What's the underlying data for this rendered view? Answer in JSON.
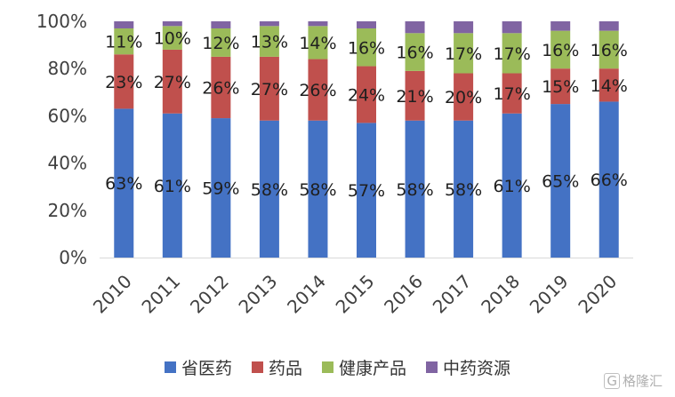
{
  "chart_data": {
    "type": "bar",
    "stacked": true,
    "percent": true,
    "categories": [
      "2010",
      "2011",
      "2012",
      "2013",
      "2014",
      "2015",
      "2016",
      "2017",
      "2018",
      "2019",
      "2020"
    ],
    "series": [
      {
        "name": "省医药",
        "color": "#4472c4",
        "values": [
          63,
          61,
          59,
          58,
          58,
          57,
          58,
          58,
          61,
          65,
          66
        ],
        "labels": [
          "63%",
          "61%",
          "59%",
          "58%",
          "58%",
          "57%",
          "58%",
          "58%",
          "61%",
          "65%",
          "66%"
        ]
      },
      {
        "name": "药品",
        "color": "#c0504d",
        "values": [
          23,
          27,
          26,
          27,
          26,
          24,
          21,
          20,
          17,
          15,
          14
        ],
        "labels": [
          "23%",
          "27%",
          "26%",
          "27%",
          "26%",
          "24%",
          "21%",
          "20%",
          "17%",
          "15%",
          "14%"
        ]
      },
      {
        "name": "健康产品",
        "color": "#9bbb59",
        "values": [
          11,
          10,
          12,
          13,
          14,
          16,
          16,
          17,
          17,
          16,
          16
        ],
        "labels": [
          "11%",
          "10%",
          "12%",
          "13%",
          "14%",
          "16%",
          "16%",
          "17%",
          "17%",
          "16%",
          "16%"
        ]
      },
      {
        "name": "中药资源",
        "color": "#8064a2",
        "values": [
          3,
          2,
          3,
          2,
          2,
          3,
          5,
          5,
          5,
          4,
          4
        ],
        "labels": []
      }
    ],
    "ylim": [
      0,
      100
    ],
    "yticks": [
      "0%",
      "20%",
      "40%",
      "60%",
      "80%",
      "100%"
    ],
    "grid": false,
    "legend": "bottom"
  },
  "watermark": {
    "icon": "gelonghui-icon",
    "text": "格隆汇"
  }
}
